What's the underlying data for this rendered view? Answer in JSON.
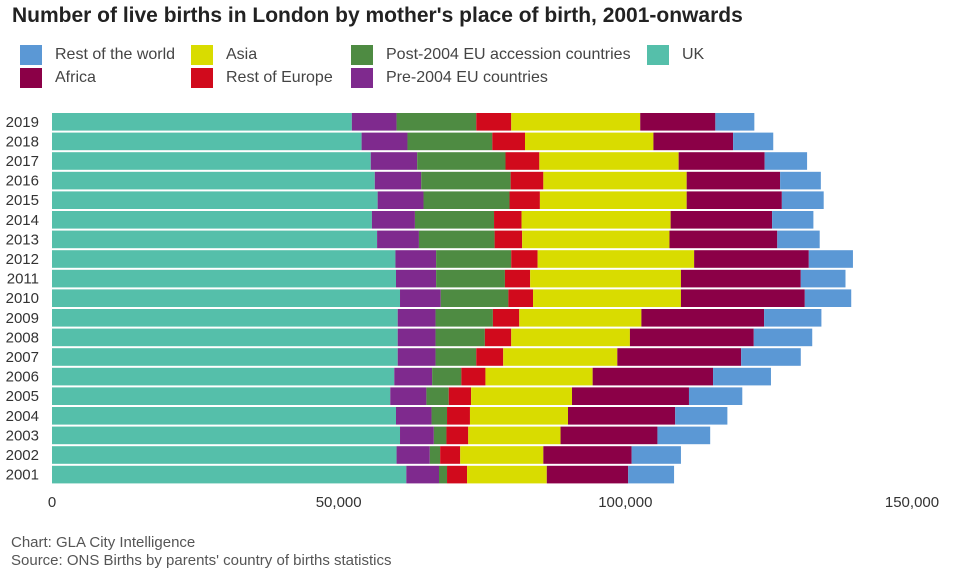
{
  "chart_data": {
    "type": "bar",
    "orientation": "horizontal",
    "stacked": true,
    "title": "Number of live births in London by mother's place of birth, 2001-onwards",
    "categories": [
      "2019",
      "2018",
      "2017",
      "2016",
      "2015",
      "2014",
      "2013",
      "2012",
      "2011",
      "2010",
      "2009",
      "2008",
      "2007",
      "2006",
      "2005",
      "2004",
      "2003",
      "2002",
      "2001"
    ],
    "series": [
      {
        "name": "UK",
        "color": "#55bfaa",
        "values": [
          52300,
          54000,
          55600,
          56300,
          56800,
          55800,
          56700,
          59900,
          60000,
          60700,
          60300,
          60300,
          60300,
          59700,
          59000,
          60000,
          60700,
          60100,
          61800
        ]
      },
      {
        "name": "Pre-2004 EU countries",
        "color": "#7f2a8e",
        "values": [
          7800,
          8000,
          8100,
          8100,
          8000,
          7500,
          7300,
          7100,
          7000,
          7100,
          6600,
          6600,
          6600,
          6600,
          6300,
          6200,
          5900,
          5800,
          5700
        ]
      },
      {
        "name": "Post-2004 EU accession countries",
        "color": "#4e8b42",
        "values": [
          13900,
          14800,
          15400,
          15600,
          15000,
          13800,
          13200,
          13100,
          12000,
          11800,
          10000,
          8600,
          7100,
          5100,
          3900,
          2700,
          2200,
          1800,
          1400
        ]
      },
      {
        "name": "Rest of Europe",
        "color": "#d10a1c",
        "values": [
          6100,
          5700,
          5900,
          5700,
          5300,
          4800,
          4800,
          4600,
          4400,
          4300,
          4600,
          4600,
          4700,
          4200,
          3900,
          4000,
          3800,
          3500,
          3500
        ]
      },
      {
        "name": "Asia",
        "color": "#d9dc00",
        "values": [
          22500,
          22400,
          24300,
          25000,
          25600,
          26000,
          25700,
          27300,
          26300,
          25800,
          21300,
          20700,
          19900,
          18700,
          17600,
          17100,
          16100,
          14500,
          13900
        ]
      },
      {
        "name": "Africa",
        "color": "#8b0047",
        "values": [
          13100,
          13900,
          15000,
          16300,
          16600,
          17700,
          18800,
          20000,
          20900,
          21600,
          21400,
          21600,
          21600,
          21000,
          20400,
          18700,
          16900,
          15400,
          14200
        ]
      },
      {
        "name": "Rest of the world",
        "color": "#5b98d5",
        "values": [
          6800,
          7000,
          7400,
          7100,
          7300,
          7200,
          7400,
          7700,
          7800,
          8100,
          10000,
          10200,
          10400,
          10100,
          9300,
          9100,
          9200,
          8600,
          8000
        ]
      }
    ],
    "xlim": [
      0,
      150000
    ],
    "xticks": [
      0,
      50000,
      100000,
      150000
    ],
    "xtick_labels": [
      "0",
      "50,000",
      "100,000",
      "150,000"
    ],
    "xlabel": "",
    "ylabel": "",
    "grid": false,
    "legend_position": "top-left"
  },
  "legend_order": [
    {
      "label": "Rest of the world",
      "color": "#5b98d5"
    },
    {
      "label": "Africa",
      "color": "#8b0047"
    },
    {
      "label": "Asia",
      "color": "#d9dc00"
    },
    {
      "label": "Rest of Europe",
      "color": "#d10a1c"
    },
    {
      "label": "Post-2004 EU accession countries",
      "color": "#4e8b42"
    },
    {
      "label": "Pre-2004 EU countries",
      "color": "#7f2a8e"
    },
    {
      "label": "UK",
      "color": "#55bfaa"
    }
  ],
  "footer": {
    "credit": "Chart: GLA City Intelligence",
    "source": "Source: ONS Births by parents' country of births statistics"
  }
}
